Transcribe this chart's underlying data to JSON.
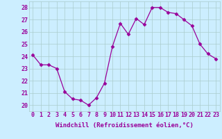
{
  "x": [
    0,
    1,
    2,
    3,
    4,
    5,
    6,
    7,
    8,
    9,
    10,
    11,
    12,
    13,
    14,
    15,
    16,
    17,
    18,
    19,
    20,
    21,
    22,
    23
  ],
  "y": [
    24.1,
    23.3,
    23.3,
    23.0,
    21.1,
    20.5,
    20.4,
    20.0,
    20.6,
    21.8,
    24.8,
    26.7,
    25.8,
    27.1,
    26.6,
    28.0,
    28.0,
    27.6,
    27.5,
    27.0,
    26.5,
    25.0,
    24.2,
    23.8
  ],
  "xlim": [
    -0.5,
    23.5
  ],
  "ylim": [
    19.5,
    28.5
  ],
  "yticks": [
    20,
    21,
    22,
    23,
    24,
    25,
    26,
    27,
    28
  ],
  "xticks": [
    0,
    1,
    2,
    3,
    4,
    5,
    6,
    7,
    8,
    9,
    10,
    11,
    12,
    13,
    14,
    15,
    16,
    17,
    18,
    19,
    20,
    21,
    22,
    23
  ],
  "xlabel": "Windchill (Refroidissement éolien,°C)",
  "line_color": "#990099",
  "marker": "D",
  "marker_size": 2.5,
  "bg_color": "#cceeff",
  "grid_color": "#aacccc",
  "xlabel_fontsize": 6.5,
  "tick_fontsize": 6.0
}
